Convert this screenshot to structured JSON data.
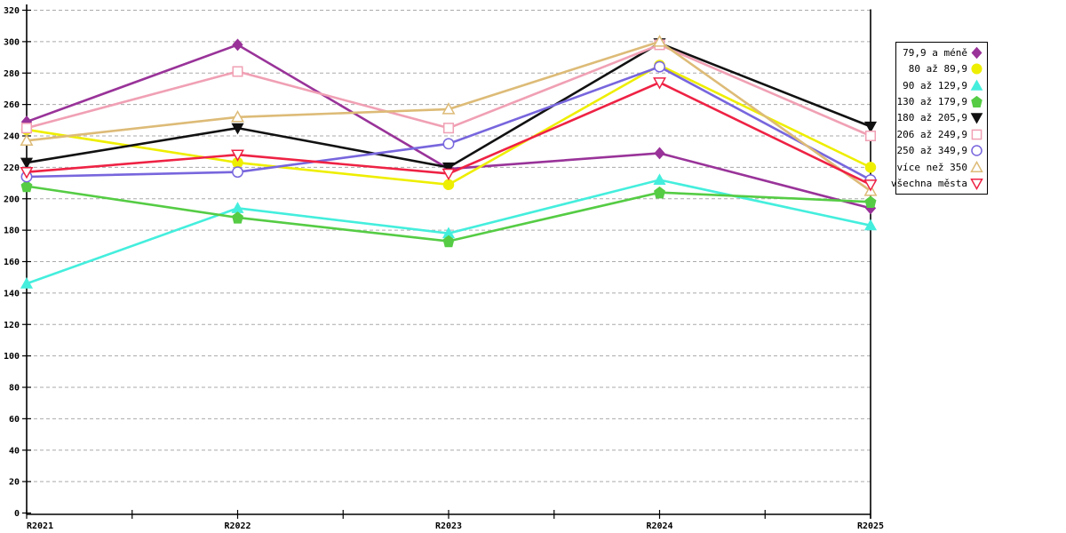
{
  "chart_data": {
    "type": "line",
    "title": "",
    "xlabel": "",
    "ylabel": "",
    "x_categories": [
      "R2021",
      "R2022",
      "R2023",
      "R2024",
      "R2025"
    ],
    "ylim": [
      0,
      320
    ],
    "y_tick_step": 20,
    "y_tick_labels": [
      "0",
      "20",
      "40",
      "60",
      "80",
      "100",
      "120",
      "140",
      "160",
      "180",
      "200",
      "220",
      "240",
      "260",
      "280",
      "300",
      "320"
    ],
    "grid": "horizontal-dashed",
    "grid_color": "#AAAAAA",
    "axis_color": "#000000",
    "background_color": "#FFFFFF",
    "legend_position": "right",
    "series": [
      {
        "name": "79,9 a méně",
        "color": "#993399",
        "marker": "diamond",
        "fill": "solid",
        "values": [
          249,
          298,
          219,
          229,
          194
        ]
      },
      {
        "name": "80 až 89,9",
        "color": "#EEEE00",
        "marker": "circle",
        "fill": "solid",
        "values": [
          244,
          223,
          209,
          285,
          220
        ]
      },
      {
        "name": "90 až 129,9",
        "color": "#44EEDD",
        "marker": "triangle-up",
        "fill": "solid",
        "values": [
          146,
          194,
          178,
          212,
          183
        ]
      },
      {
        "name": "130 až 179,9",
        "color": "#55CC44",
        "marker": "pentagon",
        "fill": "solid",
        "values": [
          208,
          188,
          173,
          204,
          198
        ]
      },
      {
        "name": "180 až 205,9",
        "color": "#111111",
        "marker": "triangle-down",
        "fill": "solid",
        "values": [
          223,
          245,
          220,
          299,
          246
        ]
      },
      {
        "name": "206 až 249,9",
        "color": "#F0A0B4",
        "marker": "square",
        "fill": "open",
        "values": [
          245,
          281,
          245,
          298,
          240
        ]
      },
      {
        "name": "250 až 349,9",
        "color": "#7766DD",
        "marker": "circle",
        "fill": "open",
        "values": [
          214,
          217,
          235,
          284,
          212
        ]
      },
      {
        "name": "více než 350",
        "color": "#DDBB77",
        "marker": "triangle-up",
        "fill": "open",
        "values": [
          237,
          252,
          257,
          300,
          205
        ]
      },
      {
        "name": "všechna města",
        "color": "#EE2244",
        "marker": "triangle-down",
        "fill": "open",
        "values": [
          217,
          228,
          216,
          274,
          209
        ]
      }
    ]
  }
}
